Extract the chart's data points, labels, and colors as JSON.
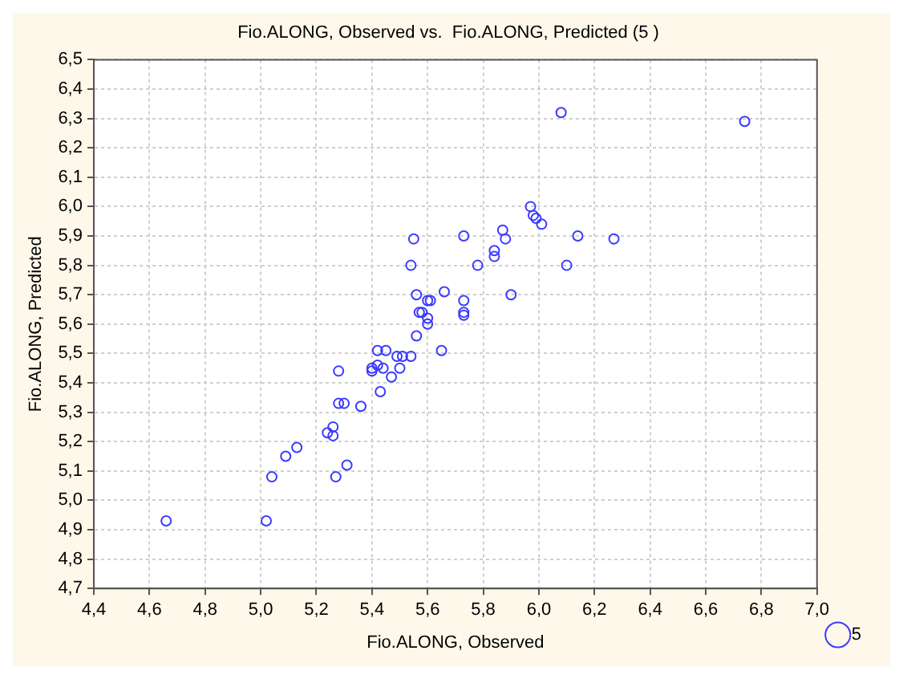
{
  "chart_data": {
    "type": "scatter",
    "title": "Fio.ALONG, Observed vs.  Fio.ALONG, Predicted (5 )",
    "xlabel": "Fio.ALONG, Observed",
    "ylabel": "Fio.ALONG, Predicted",
    "series": [
      {
        "name": "5",
        "color": "#3a3aff",
        "x": [
          4.66,
          5.02,
          5.04,
          5.09,
          5.13,
          5.24,
          5.26,
          5.26,
          5.27,
          5.31,
          5.28,
          5.3,
          5.36,
          5.28,
          5.4,
          5.4,
          5.42,
          5.43,
          5.44,
          5.42,
          5.45,
          5.47,
          5.49,
          5.5,
          5.51,
          5.54,
          5.56,
          5.65,
          5.57,
          5.58,
          5.6,
          5.6,
          5.6,
          5.61,
          5.56,
          5.66,
          5.73,
          5.73,
          5.73,
          5.54,
          5.55,
          5.73,
          5.78,
          5.84,
          5.84,
          5.87,
          5.88,
          5.9,
          5.97,
          5.98,
          5.99,
          6.01,
          6.1,
          6.14,
          6.27,
          6.08,
          6.74
        ],
        "values": [
          4.93,
          4.93,
          5.08,
          5.15,
          5.18,
          5.23,
          5.25,
          5.22,
          5.08,
          5.12,
          5.33,
          5.33,
          5.32,
          5.44,
          5.45,
          5.44,
          5.46,
          5.37,
          5.45,
          5.51,
          5.51,
          5.42,
          5.49,
          5.45,
          5.49,
          5.49,
          5.56,
          5.51,
          5.64,
          5.64,
          5.62,
          5.6,
          5.68,
          5.68,
          5.7,
          5.71,
          5.68,
          5.64,
          5.63,
          5.8,
          5.89,
          5.9,
          5.8,
          5.83,
          5.85,
          5.92,
          5.89,
          5.7,
          6.0,
          5.97,
          5.96,
          5.94,
          5.8,
          5.9,
          5.89,
          6.32,
          6.29
        ]
      }
    ],
    "xlim": [
      4.4,
      7.0
    ],
    "ylim": [
      4.7,
      6.5
    ],
    "xticks": [
      {
        "value": 4.4,
        "label": "4,4"
      },
      {
        "value": 4.6,
        "label": "4,6"
      },
      {
        "value": 4.8,
        "label": "4,8"
      },
      {
        "value": 5.0,
        "label": "5,0"
      },
      {
        "value": 5.2,
        "label": "5,2"
      },
      {
        "value": 5.4,
        "label": "5,4"
      },
      {
        "value": 5.6,
        "label": "5,6"
      },
      {
        "value": 5.8,
        "label": "5,8"
      },
      {
        "value": 6.0,
        "label": "6,0"
      },
      {
        "value": 6.2,
        "label": "6,2"
      },
      {
        "value": 6.4,
        "label": "6,4"
      },
      {
        "value": 6.6,
        "label": "6,6"
      },
      {
        "value": 6.8,
        "label": "6,8"
      },
      {
        "value": 7.0,
        "label": "7,0"
      }
    ],
    "yticks": [
      {
        "value": 4.7,
        "label": "4,7"
      },
      {
        "value": 4.8,
        "label": "4,8"
      },
      {
        "value": 4.9,
        "label": "4,9"
      },
      {
        "value": 5.0,
        "label": "5,0"
      },
      {
        "value": 5.1,
        "label": "5,1"
      },
      {
        "value": 5.2,
        "label": "5,2"
      },
      {
        "value": 5.3,
        "label": "5,3"
      },
      {
        "value": 5.4,
        "label": "5,4"
      },
      {
        "value": 5.5,
        "label": "5,5"
      },
      {
        "value": 5.6,
        "label": "5,6"
      },
      {
        "value": 5.7,
        "label": "5,7"
      },
      {
        "value": 5.8,
        "label": "5,8"
      },
      {
        "value": 5.9,
        "label": "5,9"
      },
      {
        "value": 6.0,
        "label": "6,0"
      },
      {
        "value": 6.1,
        "label": "6,1"
      },
      {
        "value": 6.2,
        "label": "6,2"
      },
      {
        "value": 6.3,
        "label": "6,3"
      },
      {
        "value": 6.4,
        "label": "6,4"
      },
      {
        "value": 6.5,
        "label": "6,5"
      }
    ],
    "grid": true,
    "legend": "bottom right",
    "marker": "circle"
  }
}
